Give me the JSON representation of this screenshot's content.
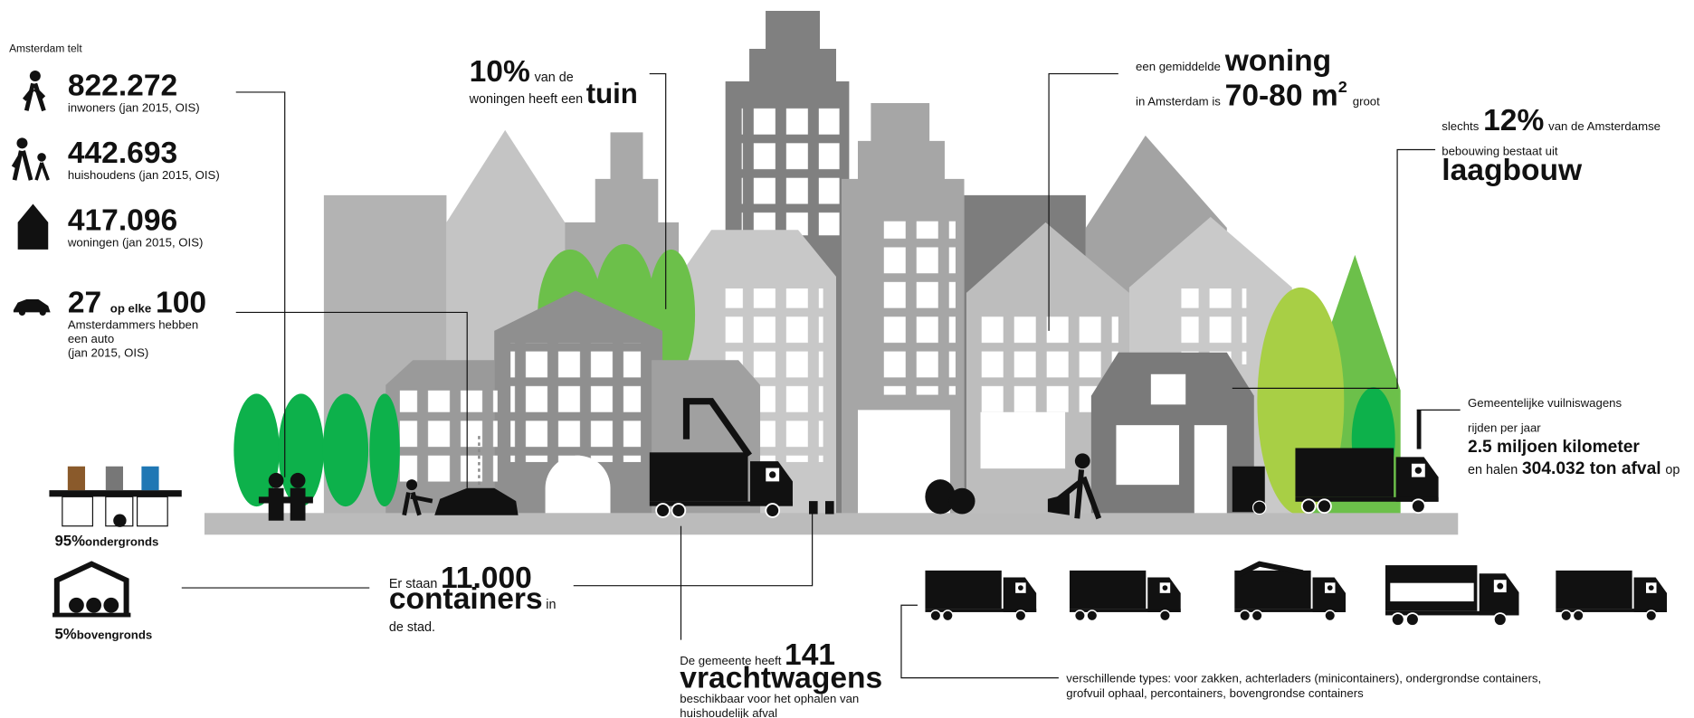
{
  "intro": "Amsterdam telt",
  "stats": [
    {
      "value": "822.272",
      "label": "inwoners (jan 2015, OIS)"
    },
    {
      "value": "442.693",
      "label": "huishoudens (jan 2015, OIS)"
    },
    {
      "value": "417.096",
      "label": "woningen (jan 2015, OIS)"
    }
  ],
  "cars": {
    "value": "27",
    "middle": "op elke",
    "total": "100",
    "lines": [
      "Amsterdammers hebben",
      "een auto",
      "(jan 2015, OIS)"
    ]
  },
  "garden": {
    "value": "10%",
    "text1": "van de",
    "text2": "woningen heeft een",
    "word": "tuin"
  },
  "home": {
    "text1": "een gemiddelde",
    "word": "woning",
    "text2": "in Amsterdam is",
    "size": "70-80 m",
    "sup": "2",
    "text3": "groot"
  },
  "lowrise": {
    "text1": "slechts",
    "value": "12%",
    "text2": "van de Amsterdamse",
    "text3": "bebouwing bestaat uit",
    "word": "laagbouw"
  },
  "garbage_trucks": {
    "line1": "Gemeentelijke vuilniswagens",
    "line2": "rijden per jaar",
    "distance": "2.5 miljoen kilometer",
    "text": "en halen",
    "amount": "304.032 ton afval",
    "tail": "op"
  },
  "underground": {
    "value": "95%",
    "label": "ondergronds"
  },
  "aboveground": {
    "value": "5%",
    "label": "bovengronds"
  },
  "containers": {
    "text1": "Er staan",
    "value": "11.000",
    "word": "containers",
    "text2": "in",
    "text3": "de stad."
  },
  "fleet": {
    "text1": "De gemeente heeft",
    "value": "141",
    "word": "vrachtwagens",
    "lines": [
      "beschikbaar voor het ophalen van",
      "huishoudelijk afval"
    ]
  },
  "types": [
    "verschillende types: voor zakken, achterladers (minicontainers), ondergrondse containers,",
    "grofvuil ophaal, percontainers, bovengrondse containers"
  ]
}
